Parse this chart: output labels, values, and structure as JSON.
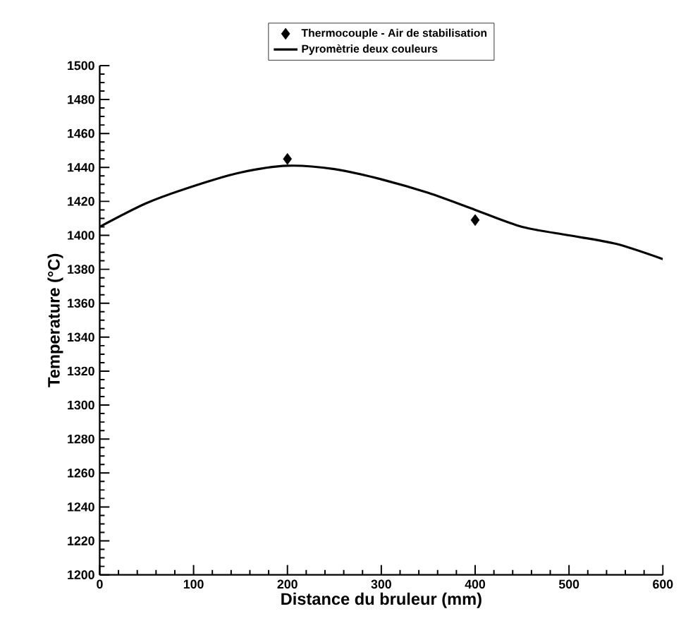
{
  "chart_data": {
    "type": "line",
    "xlabel": "Distance du bruleur (mm)",
    "ylabel": "Temperature (°C)",
    "xlim": [
      0,
      600
    ],
    "ylim": [
      1200,
      1500
    ],
    "xticks": [
      0,
      100,
      200,
      300,
      400,
      500,
      600
    ],
    "yticks": [
      1200,
      1220,
      1240,
      1260,
      1280,
      1300,
      1320,
      1340,
      1360,
      1380,
      1400,
      1420,
      1440,
      1460,
      1480,
      1500
    ],
    "legend": "top",
    "grid": false,
    "series": [
      {
        "name": "Thermocouple - Air de stabilisation",
        "type": "scatter",
        "marker": "diamond",
        "color": "#000000",
        "x": [
          200,
          400
        ],
        "values": [
          1445,
          1409
        ]
      },
      {
        "name": "Pyromètrie deux couleurs",
        "line_style": "solid",
        "color": "#000000",
        "x": [
          0,
          50,
          100,
          150,
          200,
          250,
          300,
          350,
          400,
          450,
          500,
          550,
          600
        ],
        "values": [
          1405,
          1419,
          1429,
          1437,
          1441,
          1439,
          1433,
          1425,
          1415,
          1405,
          1400,
          1395,
          1386
        ]
      }
    ]
  }
}
